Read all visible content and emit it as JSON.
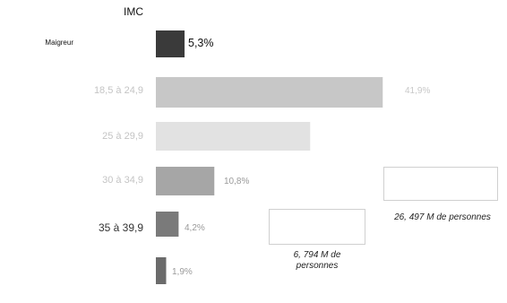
{
  "chart_data": {
    "type": "bar",
    "orientation": "horizontal",
    "column_title": "IMC",
    "categories": [
      "Maigreur",
      "",
      "",
      "",
      "",
      ""
    ],
    "ranges": [
      "",
      "18,5 à 24,9",
      "25 à 29,9",
      "30 à 34,9",
      "35 à 39,9",
      ""
    ],
    "values": [
      5.3,
      41.9,
      28.5,
      10.8,
      4.2,
      1.9
    ],
    "value_labels": [
      "5,3%",
      "41,9%",
      "",
      "10,8%",
      "4,2%",
      "1,9%"
    ],
    "bar_notes": [
      "",
      ""
    ],
    "callouts": [
      {
        "lines": [
          "",
          ""
        ]
      },
      {
        "lines": [
          "",
          ""
        ]
      }
    ],
    "counts": [
      "26, 497 M de personnes",
      "6, 794 M de personnes"
    ],
    "subnotes": [
      "",
      ""
    ],
    "colors": [
      "#3a3a3a",
      "#c7c7c7",
      "#e2e2e2",
      "#a6a6a6",
      "#7a7a7a",
      "#6b6b6b"
    ],
    "xlim": [
      0,
      45
    ]
  }
}
